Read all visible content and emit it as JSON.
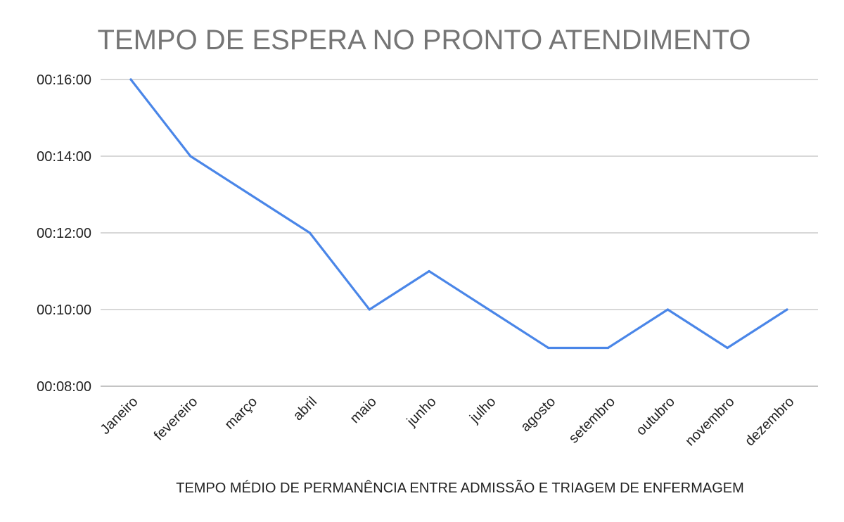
{
  "chart_data": {
    "type": "line",
    "title": "TEMPO DE ESPERA NO PRONTO ATENDIMENTO",
    "xlabel": "TEMPO MÉDIO DE PERMANÊNCIA ENTRE ADMISSÃO E TRIAGEM DE ENFERMAGEM",
    "ylabel": "",
    "categories": [
      "Janeiro",
      "fevereiro",
      "março",
      "abril",
      "maio",
      "junho",
      "julho",
      "agosto",
      "setembro",
      "outubro",
      "novembro",
      "dezembro"
    ],
    "series": [
      {
        "values": [
          "00:16:00",
          "00:14:00",
          "00:13:00",
          "00:12:00",
          "00:10:00",
          "00:11:00",
          "00:10:00",
          "00:09:00",
          "00:09:00",
          "00:10:00",
          "00:09:00",
          "00:10:00"
        ],
        "color": "#4a86e8"
      }
    ],
    "ylim": [
      "00:08:00",
      "00:16:00"
    ],
    "yticks": [
      "00:08:00",
      "00:10:00",
      "00:12:00",
      "00:14:00",
      "00:16:00"
    ],
    "grid": true,
    "legend": "none"
  }
}
